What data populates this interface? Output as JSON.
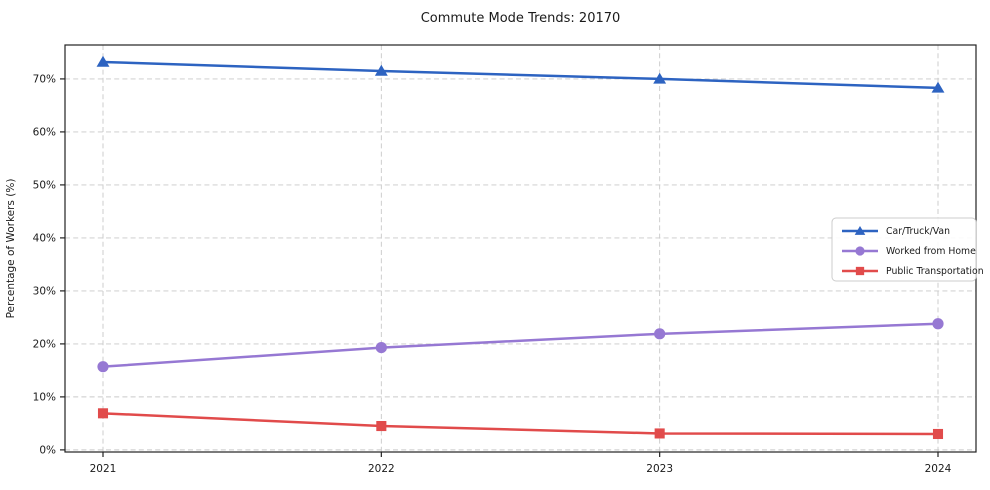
{
  "title": "Commute Mode Trends: 20170",
  "chart_data": {
    "type": "line",
    "title": "Commute Mode Trends: 20170",
    "xlabel": "",
    "ylabel": "Percentage of Workers (%)",
    "categories": [
      "2021",
      "2022",
      "2023",
      "2024"
    ],
    "series": [
      {
        "name": "Car/Truck/Van",
        "values": [
          73.2,
          71.5,
          70.0,
          68.3
        ],
        "color": "#2d63c1",
        "marker": "triangle"
      },
      {
        "name": "Worked from Home",
        "values": [
          15.7,
          19.3,
          21.9,
          23.8
        ],
        "color": "#9678d3",
        "marker": "circle"
      },
      {
        "name": "Public Transportation",
        "values": [
          6.9,
          4.5,
          3.1,
          3.0
        ],
        "color": "#e14b4b",
        "marker": "square"
      }
    ],
    "yticks": [
      0,
      10,
      20,
      30,
      40,
      50,
      60,
      70
    ],
    "ytick_labels": [
      "0%",
      "10%",
      "20%",
      "30%",
      "40%",
      "50%",
      "60%",
      "70%"
    ],
    "ylim": [
      -0.4,
      76.4
    ],
    "grid": true,
    "grid_style": "dashed",
    "legend_position": "center right",
    "legend_entries": [
      "Car/Truck/Van",
      "Worked from Home",
      "Public Transportation"
    ]
  },
  "colors": {
    "grid": "#c9c9c9",
    "spine": "#222222",
    "legend_border": "#cccccc",
    "background": "#ffffff",
    "text": "#1a1a1a"
  }
}
